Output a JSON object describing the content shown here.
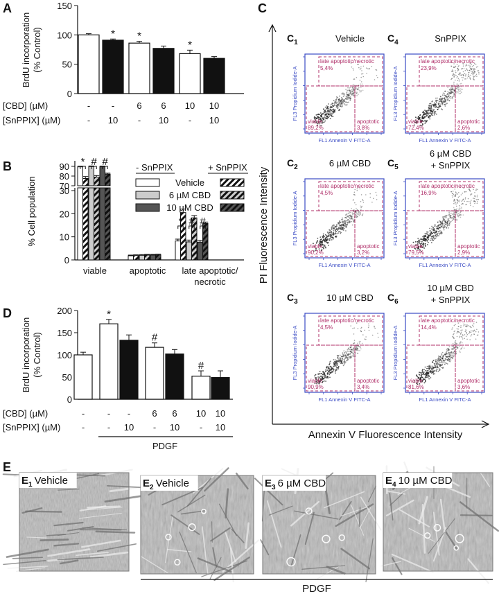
{
  "panel_letters": {
    "A": "A",
    "B": "B",
    "C": "C",
    "D": "D",
    "E": "E"
  },
  "chart_data": [
    {
      "id": "A",
      "type": "bar",
      "ylabel": "BrdU incorporation\n(% Control)",
      "ylim": [
        0,
        150
      ],
      "yticks": [
        0,
        50,
        100,
        150
      ],
      "row_labels": [
        "[CBD] (µM)",
        "[SnPPIX] (µM)"
      ],
      "groups": [
        {
          "cbd": "-",
          "snppix": "-",
          "value": 100,
          "err": 2,
          "fill": "open",
          "sig": ""
        },
        {
          "cbd": "-",
          "snppix": "10",
          "value": 91,
          "err": 2,
          "fill": "filled",
          "sig": "*"
        },
        {
          "cbd": "6",
          "snppix": "-",
          "value": 86,
          "err": 3,
          "fill": "open",
          "sig": "*"
        },
        {
          "cbd": "6",
          "snppix": "10",
          "value": 77,
          "err": 4,
          "fill": "filled",
          "sig": ""
        },
        {
          "cbd": "10",
          "snppix": "-",
          "value": 68,
          "err": 6,
          "fill": "open",
          "sig": "*"
        },
        {
          "cbd": "10",
          "snppix": "10",
          "value": 60,
          "err": 3,
          "fill": "filled",
          "sig": ""
        }
      ]
    },
    {
      "id": "B",
      "type": "bar",
      "ylabel": "% Cell population",
      "broken_axis": {
        "lower": [
          0,
          30
        ],
        "upper": [
          70,
          90
        ]
      },
      "yticks_lower": [
        0,
        10,
        20,
        30
      ],
      "yticks_upper": [
        70,
        80,
        90
      ],
      "categories": [
        "viable",
        "apoptotic",
        "late apoptotic/\nnecrotic"
      ],
      "legend_header_left": "- SnPPIX",
      "legend_header_right": "+ SnPPIX",
      "series": [
        {
          "name": "Vehicle",
          "color": "#ffffff",
          "minus": [
            89.5,
            1.8,
            8.2
          ],
          "plus": [
            77.5,
            1.9,
            20.5
          ],
          "err_minus": [
            0.6,
            0.3,
            0.8
          ],
          "err_plus": [
            2.0,
            0.3,
            1.5
          ]
        },
        {
          "name": "6 µM CBD",
          "color": "#cccccc",
          "minus": [
            89.8,
            2.0,
            7.8
          ],
          "plus": [
            79.0,
            2.1,
            18.2
          ],
          "err_minus": [
            0.6,
            0.3,
            0.8
          ],
          "err_plus": [
            1.5,
            0.3,
            1.0
          ]
        },
        {
          "name": "10 µM CBD",
          "color": "#555555",
          "minus": [
            89.6,
            2.1,
            7.7
          ],
          "plus": [
            82.0,
            2.2,
            15.8
          ],
          "err_minus": [
            0.6,
            0.3,
            0.8
          ],
          "err_plus": [
            1.0,
            0.3,
            0.6
          ]
        }
      ],
      "sig_viable": [
        "*",
        "#",
        "#"
      ],
      "sig_late": [
        "*",
        "#",
        "#"
      ]
    },
    {
      "id": "D",
      "type": "bar",
      "ylabel": "BrdU incorporation\n(% Control)",
      "ylim": [
        0,
        200
      ],
      "yticks": [
        0,
        50,
        100,
        150,
        200
      ],
      "row_labels": [
        "[CBD] (µM)",
        "[SnPPIX] (µM)"
      ],
      "footer": "PDGF",
      "groups": [
        {
          "cbd": "-",
          "snppix": "-",
          "value": 100,
          "err": 6,
          "fill": "open",
          "sig": ""
        },
        {
          "cbd": "-",
          "snppix": "-",
          "value": 170,
          "err": 10,
          "fill": "open",
          "sig": "*"
        },
        {
          "cbd": "-",
          "snppix": "10",
          "value": 133,
          "err": 12,
          "fill": "filled",
          "sig": ""
        },
        {
          "cbd": "6",
          "snppix": "-",
          "value": 117,
          "err": 10,
          "fill": "open",
          "sig": "#"
        },
        {
          "cbd": "6",
          "snppix": "10",
          "value": 102,
          "err": 10,
          "fill": "filled",
          "sig": ""
        },
        {
          "cbd": "10",
          "snppix": "-",
          "value": 52,
          "err": 12,
          "fill": "open",
          "sig": "#"
        },
        {
          "cbd": "10",
          "snppix": "10",
          "value": 49,
          "err": 15,
          "fill": "filled",
          "sig": ""
        }
      ]
    },
    {
      "id": "C",
      "type": "scatter",
      "ylabel": "PI Fluorescence Intensity",
      "xlabel": "Annexin V Fluorescence Intensity",
      "plot_xlabel": "FL1 Annexin V FITC-A",
      "plot_ylabel": "FL3 Propidium Iodide-A",
      "gate_labels": {
        "viable": "viable",
        "apoptotic": "apoptotic",
        "late": "late apoptotic/necrotic"
      },
      "tick_labels": [
        "10^2",
        "10^3",
        "10^4",
        "10^5",
        "10^6",
        "10^7"
      ],
      "plots": [
        {
          "label": "C",
          "sub": "1",
          "title": "Vehicle",
          "title2": "",
          "viable": "89,2%",
          "apoptotic": "3,8%",
          "late": "5,4%"
        },
        {
          "label": "C",
          "sub": "4",
          "title": "SnPPIX",
          "title2": "",
          "viable": "72,4%",
          "apoptotic": "2,6%",
          "late": "23,9%"
        },
        {
          "label": "C",
          "sub": "2",
          "title": "6 µM CBD",
          "title2": "",
          "viable": "90,2%",
          "apoptotic": "3,2%",
          "late": "4,5%"
        },
        {
          "label": "C",
          "sub": "5",
          "title": "6 µM CBD",
          "title2": "+ SnPPIX",
          "viable": "79,5%",
          "apoptotic": "2,9%",
          "late": "16,9%"
        },
        {
          "label": "C",
          "sub": "3",
          "title": "10 µM CBD",
          "title2": "",
          "viable": "90,9%",
          "apoptotic": "3,4%",
          "late": "4,5%"
        },
        {
          "label": "C",
          "sub": "6",
          "title": "10 µM CBD",
          "title2": "+ SnPPIX",
          "viable": "81,6%",
          "apoptotic": "3,6%",
          "late": "14,4%"
        }
      ]
    }
  ],
  "micrographs": {
    "items": [
      {
        "label": "E",
        "sub": "1",
        "caption": "Vehicle"
      },
      {
        "label": "E",
        "sub": "2",
        "caption": "Vehicle"
      },
      {
        "label": "E",
        "sub": "3",
        "caption": "6 µM CBD"
      },
      {
        "label": "E",
        "sub": "4",
        "caption": "10 µM CBD"
      }
    ],
    "footer": "PDGF"
  }
}
